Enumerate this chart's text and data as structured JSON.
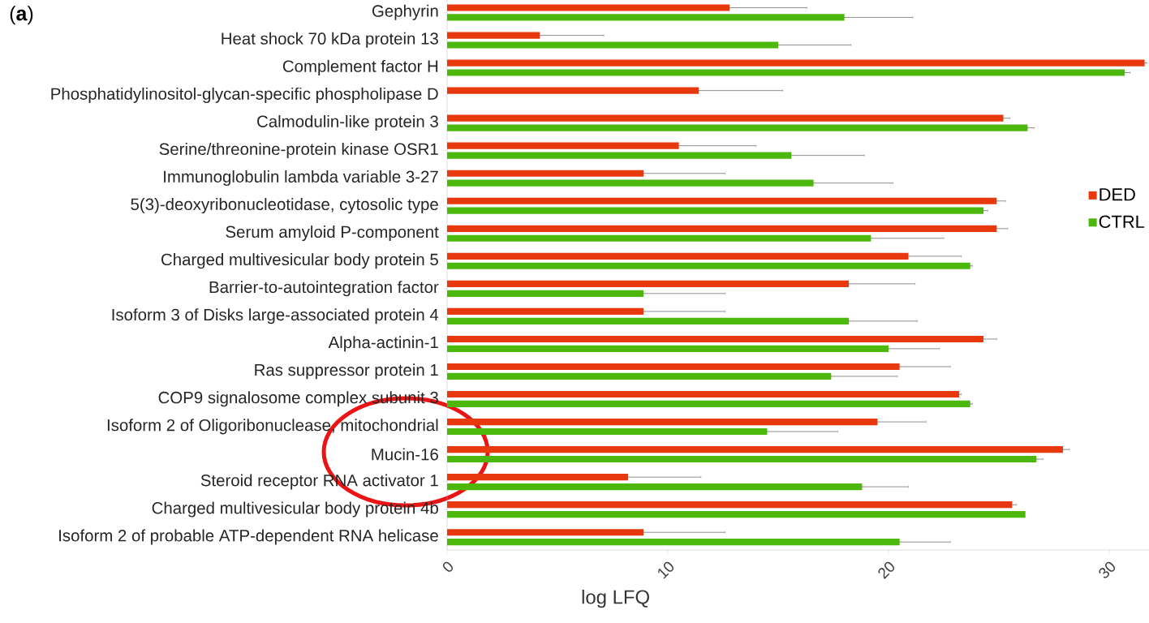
{
  "chart_data": {
    "type": "bar",
    "orientation": "horizontal",
    "xlabel": "log LFQ",
    "annotations": [
      "(**a**)"
    ],
    "categories": [
      "Gephyrin",
      "Heat shock 70 kDa protein 13",
      "Complement factor H",
      "Phosphatidylinositol-glycan-specific phospholipase D",
      "Calmodulin-like protein 3",
      "Serine/threonine-protein kinase OSR1",
      "Immunoglobulin lambda variable 3-27",
      "5(3)-deoxyribonucleotidase, cytosolic type",
      "Serum amyloid P-component",
      "Charged multivesicular body protein 5",
      "Barrier-to-autointegration factor",
      "Isoform 3 of Disks large-associated protein 4",
      "Alpha-actinin-1",
      "Ras suppressor protein 1",
      "COP9 signalosome complex subunit 3",
      "Isoform 2 of Oligoribonuclease, mitochondrial",
      "Mucin-16",
      "Steroid receptor RNA activator 1",
      "Charged multivesicular body protein 4b",
      "Isoform 2 of probable ATP-dependent RNA helicase"
    ],
    "series": [
      {
        "name": "DED",
        "color": "#e8380d",
        "values": [
          12.8,
          4.2,
          31.6,
          11.4,
          25.2,
          10.5,
          8.9,
          24.9,
          24.9,
          20.9,
          18.2,
          8.9,
          24.3,
          20.5,
          23.2,
          19.5,
          27.9,
          8.2,
          25.6,
          8.9
        ],
        "errors": [
          [
            12.8,
            16.3
          ],
          [
            4.2,
            7.1
          ],
          [
            31.6,
            31.7
          ],
          [
            11.4,
            15.2
          ],
          [
            25.2,
            25.5
          ],
          [
            10.5,
            14.0
          ],
          [
            8.9,
            12.6
          ],
          [
            24.9,
            25.3
          ],
          [
            24.9,
            25.4
          ],
          [
            20.9,
            23.3
          ],
          [
            18.2,
            21.2
          ],
          [
            8.9,
            12.6
          ],
          [
            24.3,
            24.9
          ],
          [
            20.5,
            22.8
          ],
          [
            23.2,
            23.3
          ],
          [
            19.5,
            21.7
          ],
          [
            27.9,
            28.2
          ],
          [
            8.2,
            11.5
          ],
          [
            25.6,
            25.8
          ],
          [
            8.9,
            12.6
          ]
        ]
      },
      {
        "name": "CTRL",
        "color": "#4cb80c",
        "values": [
          18.0,
          15.0,
          30.7,
          null,
          26.3,
          15.6,
          16.6,
          24.3,
          19.2,
          23.7,
          8.9,
          18.2,
          20.0,
          17.4,
          23.7,
          14.5,
          26.7,
          18.8,
          26.2,
          20.5
        ],
        "errors": [
          [
            18.0,
            21.1
          ],
          [
            15.0,
            18.3
          ],
          [
            30.7,
            30.95
          ],
          null,
          [
            26.3,
            26.6
          ],
          [
            15.6,
            18.9
          ],
          [
            16.6,
            20.2
          ],
          [
            24.3,
            24.5
          ],
          [
            19.2,
            22.5
          ],
          [
            23.7,
            23.8
          ],
          [
            8.9,
            12.6
          ],
          [
            18.2,
            21.3
          ],
          [
            20.0,
            22.3
          ],
          [
            17.4,
            20.4
          ],
          [
            23.7,
            23.8
          ],
          [
            14.5,
            17.7
          ],
          [
            26.7,
            27.0
          ],
          [
            18.8,
            20.9
          ],
          null,
          [
            20.5,
            22.8
          ]
        ]
      }
    ],
    "xlim": [
      0,
      31.8
    ],
    "xticks": [
      0,
      10,
      20,
      30
    ],
    "grid": false,
    "legend": "right"
  }
}
